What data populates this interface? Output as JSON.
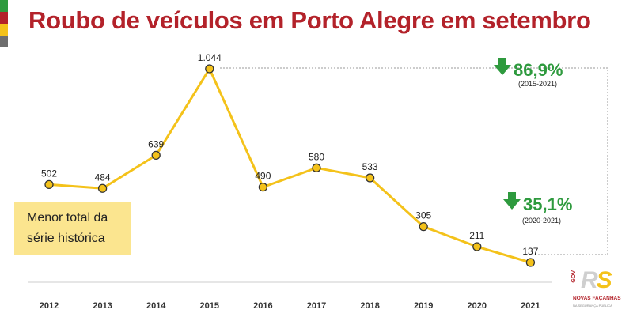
{
  "title": "Roubo de veículos em Porto Alegre em setembro",
  "flag_colors": [
    "#2e9a3e",
    "#b3222a",
    "#f4c21a",
    "#6e6e6e"
  ],
  "callout": {
    "line1": "Menor total da",
    "line2": "série histórica"
  },
  "stats": [
    {
      "value": "86,9%",
      "period": "(2015-2021)",
      "color": "#2e9a3e",
      "icon": "arrow-down-icon"
    },
    {
      "value": "35,1%",
      "period": "(2020-2021)",
      "color": "#2e9a3e",
      "icon": "arrow-down-icon"
    }
  ],
  "logo": {
    "gov": "GOV",
    "rs_r": "R",
    "rs_s": "S",
    "tagline": "NOVAS FAÇANHAS",
    "subline": "NA SEGURANÇA PÚBLICA"
  },
  "chart_data": {
    "type": "line",
    "title": "Roubo de veículos em Porto Alegre em setembro",
    "xlabel": "",
    "ylabel": "",
    "categories": [
      "2012",
      "2013",
      "2014",
      "2015",
      "2016",
      "2017",
      "2018",
      "2019",
      "2020",
      "2021"
    ],
    "values": [
      502,
      484,
      639,
      1044,
      490,
      580,
      533,
      305,
      211,
      137
    ],
    "value_labels": [
      "502",
      "484",
      "639",
      "1.044",
      "490",
      "580",
      "533",
      "305",
      "211",
      "137"
    ],
    "ylim": [
      0,
      1100
    ],
    "grid": false,
    "line_color": "#f4c21a",
    "marker_color": "#f4c21a"
  }
}
